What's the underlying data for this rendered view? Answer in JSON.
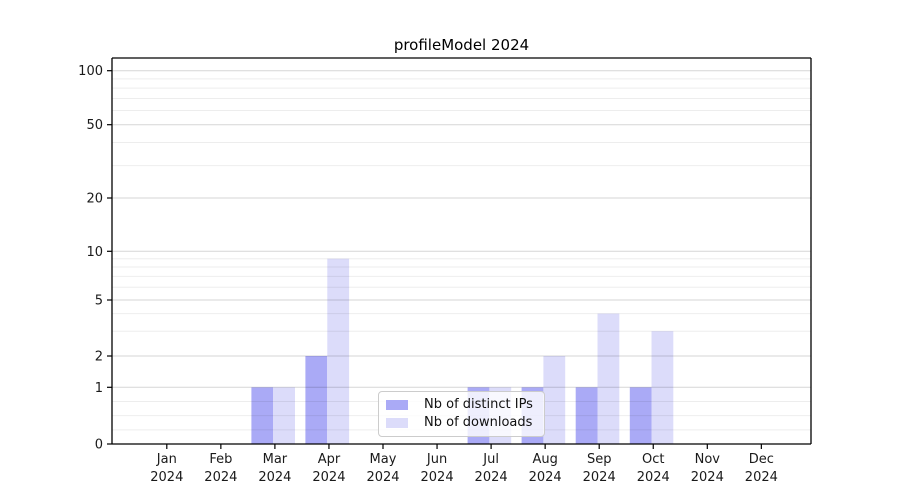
{
  "chart_data": {
    "type": "bar",
    "title": "profileModel 2024",
    "categories": [
      "Jan",
      "Feb",
      "Mar",
      "Apr",
      "May",
      "Jun",
      "Jul",
      "Aug",
      "Sep",
      "Oct",
      "Nov",
      "Dec"
    ],
    "x_tick_year": "2024",
    "series": [
      {
        "name": "Nb of distinct IPs",
        "color": "#aaaaf6",
        "values": [
          0,
          0,
          1,
          2,
          0,
          0,
          1,
          1,
          1,
          1,
          0,
          0
        ]
      },
      {
        "name": "Nb of downloads",
        "color": "#dcdcfa",
        "values": [
          0,
          0,
          1,
          9,
          0,
          0,
          1,
          2,
          4,
          3,
          0,
          0
        ]
      }
    ],
    "y_axis": {
      "scale": "log-like",
      "major_ticks": [
        0,
        1,
        2,
        5,
        10,
        20,
        50,
        100
      ],
      "minor_ticks": [
        0.25,
        0.5,
        0.75,
        3,
        4,
        6,
        7,
        8,
        9,
        30,
        40,
        60,
        70,
        80,
        90
      ],
      "range": [
        0,
        120
      ]
    },
    "x_axis": {
      "tick_count": 12
    },
    "legend": {
      "position": "lower center"
    },
    "grid": "on"
  },
  "colors": {
    "spine": "#000000",
    "text": "#1a1a1a",
    "grid_major": "rgba(0,0,0,0.16)",
    "grid_minor": "rgba(0,0,0,0.07)"
  }
}
